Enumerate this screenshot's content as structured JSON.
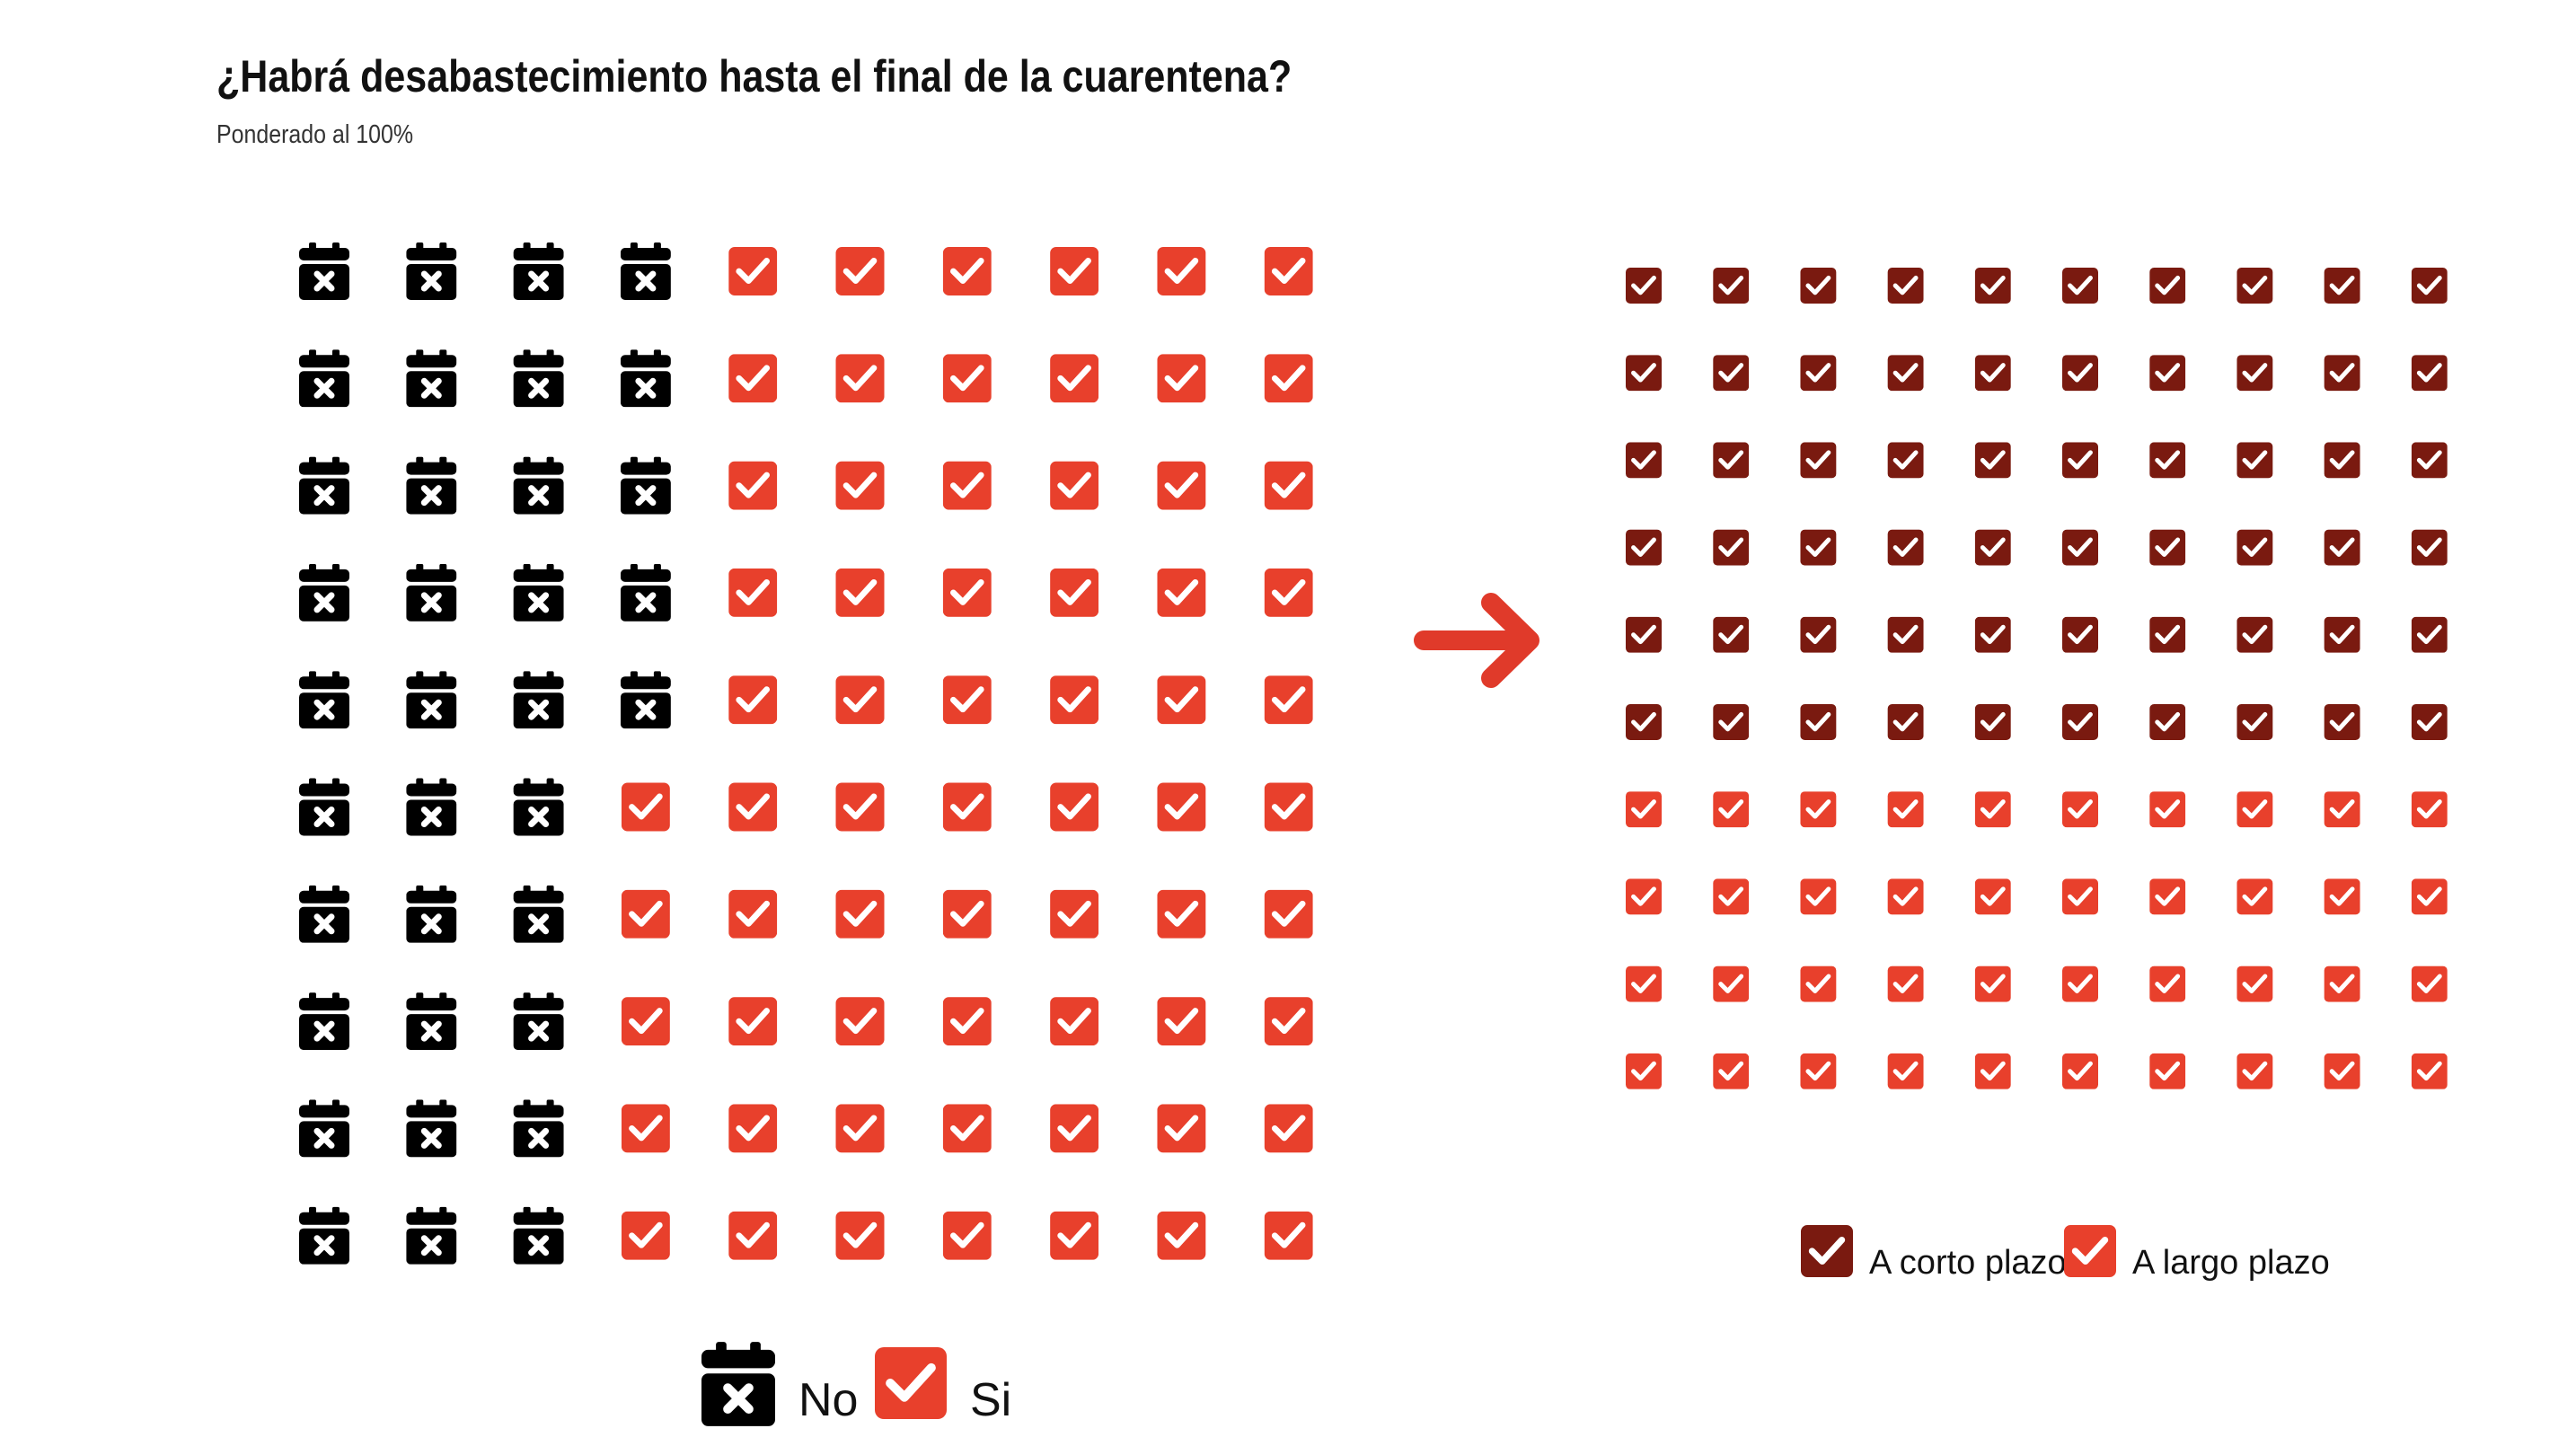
{
  "chart_data": [
    {
      "type": "table",
      "title": "¿Habrá desabastecimiento hasta el final de la cuarentena?",
      "subtitle": "Ponderado al 100%",
      "grid_rows": 10,
      "grid_cols": 10,
      "order": "column-major, top-to-bottom then left-to-right",
      "series": [
        {
          "name": "No",
          "values": [
            35
          ],
          "icon": "calendar-x-icon",
          "color": "#000000"
        },
        {
          "name": "Si",
          "values": [
            65
          ],
          "icon": "checkbox-check-icon",
          "color": "#e8402c"
        }
      ],
      "legend": "bottom-center"
    },
    {
      "type": "table",
      "grid_rows": 10,
      "grid_cols": 10,
      "order": "row-major, left-to-right then top-to-bottom",
      "series": [
        {
          "name": "A corto plazo",
          "values": [
            60
          ],
          "icon": "checkbox-check-icon",
          "color": "#7a1a10"
        },
        {
          "name": "A largo plazo",
          "values": [
            40
          ],
          "icon": "checkbox-check-icon",
          "color": "#e8402c"
        }
      ],
      "legend": "bottom-center"
    }
  ],
  "arrow": {
    "icon": "arrow-right-icon",
    "color": "#e03a2a"
  }
}
